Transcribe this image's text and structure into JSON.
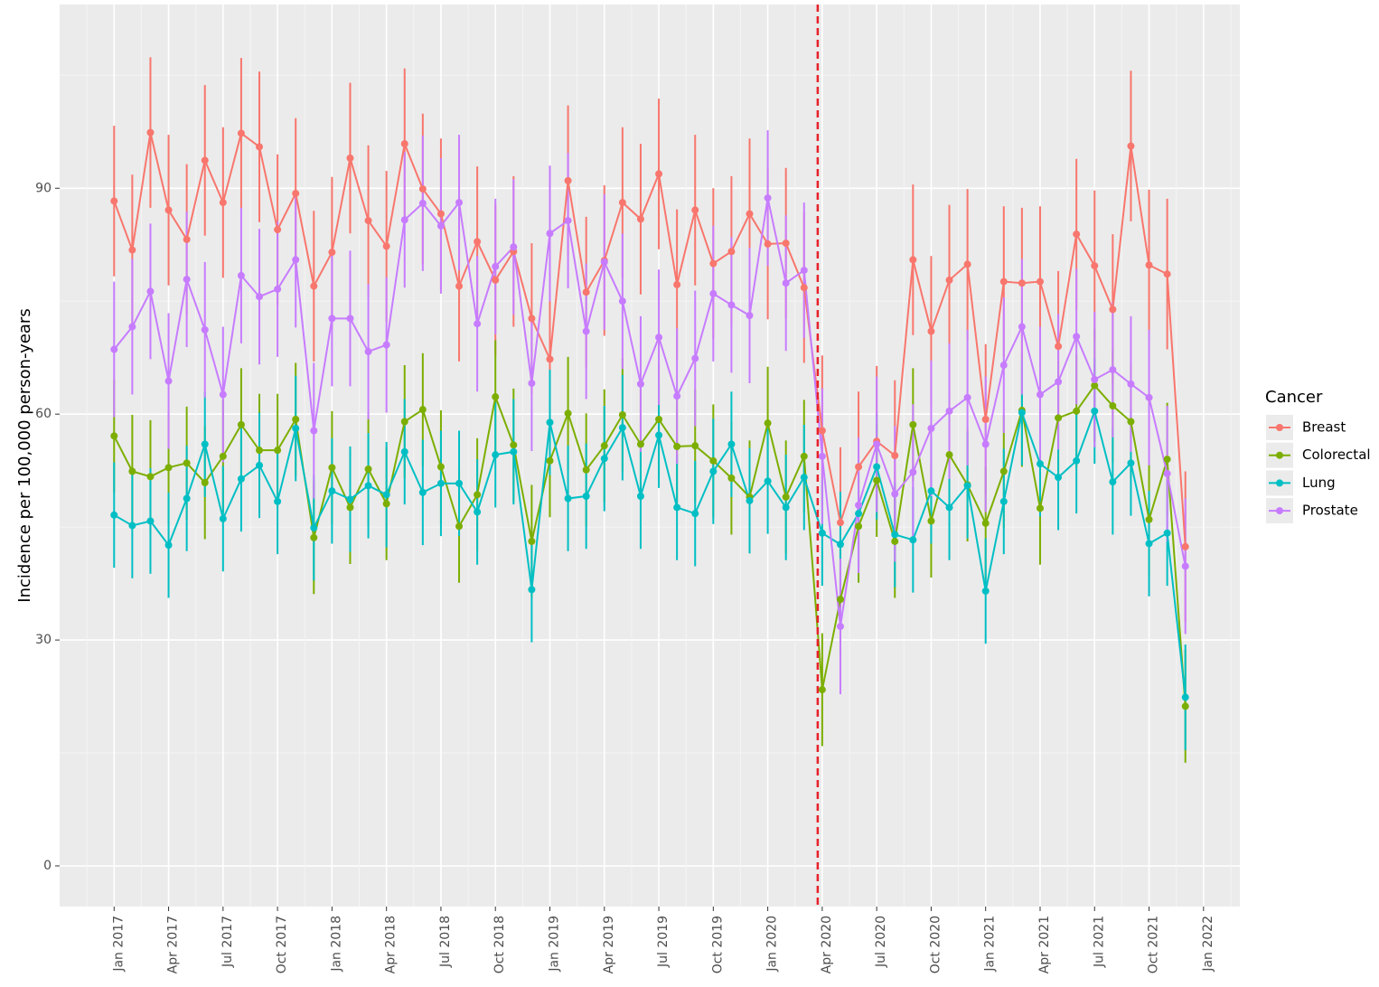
{
  "chart_data": {
    "type": "line",
    "y_label": "Incidence per 100,000 person-years",
    "legend_title": "Cancer",
    "legend_position": "right",
    "grid": true,
    "x": [
      "2017-01",
      "2017-02",
      "2017-03",
      "2017-04",
      "2017-05",
      "2017-06",
      "2017-07",
      "2017-08",
      "2017-09",
      "2017-10",
      "2017-11",
      "2017-12",
      "2018-01",
      "2018-02",
      "2018-03",
      "2018-04",
      "2018-05",
      "2018-06",
      "2018-07",
      "2018-08",
      "2018-09",
      "2018-10",
      "2018-11",
      "2018-12",
      "2019-01",
      "2019-02",
      "2019-03",
      "2019-04",
      "2019-05",
      "2019-06",
      "2019-07",
      "2019-08",
      "2019-09",
      "2019-10",
      "2019-11",
      "2019-12",
      "2020-01",
      "2020-02",
      "2020-03",
      "2020-04",
      "2020-05",
      "2020-06",
      "2020-07",
      "2020-08",
      "2020-09",
      "2020-10",
      "2020-11",
      "2020-12",
      "2021-01",
      "2021-02",
      "2021-03",
      "2021-04",
      "2021-05",
      "2021-06",
      "2021-07",
      "2021-08",
      "2021-09",
      "2021-10",
      "2021-11",
      "2021-12"
    ],
    "xlim": [
      "2016-10",
      "2022-03"
    ],
    "xticks": [
      {
        "value": "2017-01",
        "label": "Jan 2017"
      },
      {
        "value": "2017-04",
        "label": "Apr 2017"
      },
      {
        "value": "2017-07",
        "label": "Jul 2017"
      },
      {
        "value": "2017-10",
        "label": "Oct 2017"
      },
      {
        "value": "2018-01",
        "label": "Jan 2018"
      },
      {
        "value": "2018-04",
        "label": "Apr 2018"
      },
      {
        "value": "2018-07",
        "label": "Jul 2018"
      },
      {
        "value": "2018-10",
        "label": "Oct 2018"
      },
      {
        "value": "2019-01",
        "label": "Jan 2019"
      },
      {
        "value": "2019-04",
        "label": "Apr 2019"
      },
      {
        "value": "2019-07",
        "label": "Jul 2019"
      },
      {
        "value": "2019-10",
        "label": "Oct 2019"
      },
      {
        "value": "2020-01",
        "label": "Jan 2020"
      },
      {
        "value": "2020-04",
        "label": "Apr 2020"
      },
      {
        "value": "2020-07",
        "label": "Jul 2020"
      },
      {
        "value": "2020-10",
        "label": "Oct 2020"
      },
      {
        "value": "2021-01",
        "label": "Jan 2021"
      },
      {
        "value": "2021-04",
        "label": "Apr 2021"
      },
      {
        "value": "2021-07",
        "label": "Jul 2021"
      },
      {
        "value": "2021-10",
        "label": "Oct 2021"
      },
      {
        "value": "2022-01",
        "label": "Jan 2022"
      }
    ],
    "ylim": [
      -5.4,
      114.4
    ],
    "yticks": [
      0,
      30,
      60,
      90
    ],
    "vline": {
      "x": "2020-04",
      "color": "#e8202a"
    },
    "series": [
      {
        "name": "Breast",
        "color": "#F8766D",
        "error": 10,
        "values": [
          88.3,
          81.8,
          97.4,
          87.1,
          83.2,
          93.7,
          88.1,
          97.3,
          95.5,
          84.5,
          89.3,
          77.0,
          81.5,
          94.0,
          85.7,
          82.3,
          95.9,
          89.9,
          86.6,
          77.0,
          82.9,
          77.8,
          81.6,
          72.7,
          67.3,
          91.0,
          76.2,
          80.4,
          88.1,
          85.9,
          91.9,
          77.2,
          87.1,
          80.0,
          81.6,
          86.6,
          82.6,
          82.7,
          76.8,
          57.8,
          45.6,
          53.0,
          56.4,
          54.5,
          80.5,
          71.0,
          77.8,
          79.9,
          59.3,
          77.6,
          77.4,
          77.6,
          69.0,
          83.9,
          79.7,
          73.9,
          95.6,
          79.8,
          78.6,
          42.4
        ]
      },
      {
        "name": "Colorectal",
        "color": "#7CAE00",
        "error": 7.5,
        "values": [
          57.1,
          52.4,
          51.7,
          52.9,
          53.5,
          50.9,
          54.4,
          58.6,
          55.2,
          55.2,
          59.3,
          43.6,
          52.9,
          47.6,
          52.7,
          48.1,
          59.0,
          60.6,
          53.0,
          45.1,
          49.3,
          62.3,
          55.9,
          43.1,
          53.8,
          60.1,
          52.6,
          55.8,
          59.9,
          56.0,
          59.3,
          55.7,
          55.8,
          53.8,
          51.5,
          49.0,
          58.8,
          49.0,
          54.4,
          23.4,
          35.4,
          45.1,
          51.2,
          43.1,
          58.6,
          45.8,
          54.6,
          50.6,
          45.5,
          52.4,
          60.5,
          47.5,
          59.5,
          60.4,
          63.8,
          61.1,
          59.0,
          46.0,
          54.0,
          21.2
        ]
      },
      {
        "name": "Lung",
        "color": "#00BFC4",
        "error": 7,
        "values": [
          46.6,
          45.2,
          45.8,
          42.6,
          48.8,
          56.0,
          46.1,
          51.4,
          53.2,
          48.4,
          58.1,
          44.9,
          49.8,
          48.7,
          50.5,
          49.3,
          55.0,
          49.6,
          50.8,
          50.8,
          47.0,
          54.6,
          55.0,
          36.7,
          58.9,
          48.8,
          49.1,
          54.1,
          58.2,
          49.1,
          57.2,
          47.6,
          46.8,
          52.4,
          56.0,
          48.5,
          51.1,
          47.6,
          51.6,
          44.2,
          42.7,
          46.8,
          53.0,
          44.0,
          43.3,
          49.8,
          47.6,
          50.5,
          36.5,
          48.4,
          60.2,
          53.4,
          51.6,
          53.8,
          60.4,
          51.0,
          53.5,
          42.8,
          44.2,
          22.4
        ]
      },
      {
        "name": "Prostate",
        "color": "#C77CFF",
        "error": 9,
        "values": [
          68.6,
          71.6,
          76.3,
          64.4,
          77.9,
          71.2,
          62.6,
          78.4,
          75.6,
          76.6,
          80.5,
          57.8,
          72.7,
          72.7,
          68.3,
          69.2,
          85.8,
          88.0,
          85.0,
          88.1,
          72.0,
          79.6,
          82.2,
          64.1,
          84.0,
          85.7,
          71.0,
          80.2,
          75.0,
          64.0,
          70.2,
          62.4,
          67.4,
          76.0,
          74.5,
          73.1,
          88.7,
          77.4,
          79.1,
          54.4,
          31.8,
          47.9,
          56.0,
          49.4,
          52.3,
          58.1,
          60.4,
          62.2,
          56.0,
          66.5,
          71.6,
          62.6,
          64.3,
          70.3,
          64.6,
          65.9,
          64.0,
          62.2,
          52.1,
          39.8
        ]
      }
    ]
  }
}
